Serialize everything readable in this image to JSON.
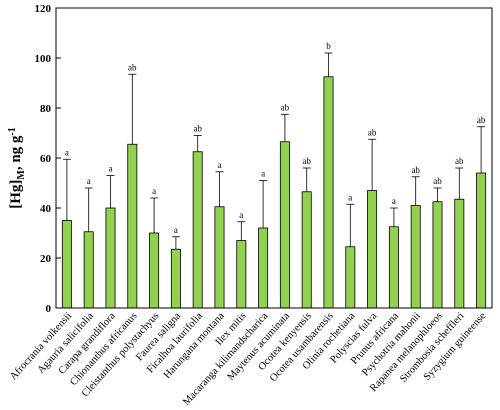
{
  "chart_data": {
    "type": "bar",
    "ylabel_main": "[Hg]",
    "ylabel_sub": "M",
    "ylabel_unit": ", ng g",
    "ylabel_sup": "-1",
    "ylim": [
      0,
      120
    ],
    "yticks": [
      0,
      20,
      40,
      60,
      80,
      100,
      120
    ],
    "grid": false,
    "bar_color": "#92d050",
    "categories": [
      "Afrocrania volkensii",
      "Agauria salicifolia",
      "Carapa grandiflora",
      "Chionanthus africanus",
      "Cleistanthus polystachyus",
      "Faurea saligna",
      "Ficalhoa laurifolia",
      "Harungana montana",
      "Ilex mitis",
      "Macaranga kilimandscharica",
      "Maytenus acuminata",
      "Ocotea kenyensis",
      "Ocotea usambarensis",
      "Olinia rochetiana",
      "Polyscias fulva",
      "Prunus africana",
      "Psychotria mahonii",
      "Rapanea melanophloeos",
      "Strombosia scheffleri",
      "Syzygium guineense"
    ],
    "values": [
      35,
      30.5,
      40,
      65.5,
      30,
      23.5,
      62.5,
      40.5,
      27,
      32,
      66.5,
      46.5,
      92.5,
      24.5,
      47,
      32.5,
      41,
      42.5,
      43.5,
      54
    ],
    "errors": [
      24.5,
      17.5,
      13,
      28,
      14,
      5,
      6.5,
      14,
      7.5,
      19,
      11,
      9.5,
      9.5,
      17,
      20.5,
      7.5,
      11.5,
      5.5,
      12.5,
      18.5
    ],
    "significance": [
      "a",
      "a",
      "a",
      "ab",
      "a",
      "a",
      "ab",
      "a",
      "a",
      "a",
      "ab",
      "ab",
      "b",
      "a",
      "ab",
      "a",
      "ab",
      "ab",
      "ab",
      "ab"
    ]
  }
}
